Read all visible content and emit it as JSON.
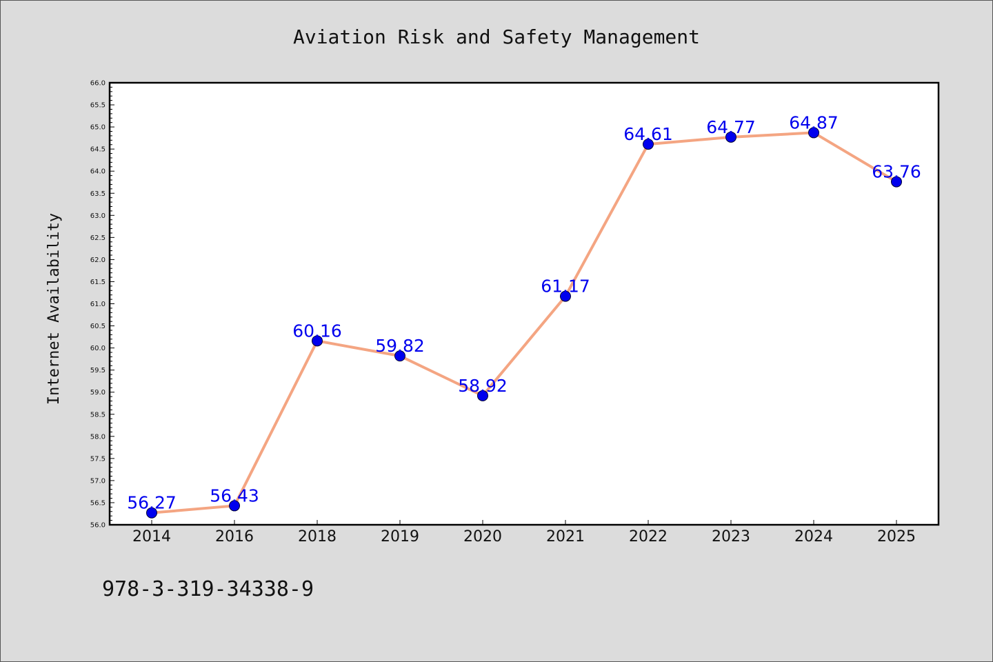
{
  "chart_data": {
    "type": "line",
    "title": "Aviation Risk and Safety Management",
    "xlabel": "",
    "ylabel": "Internet Availability",
    "categories": [
      "2014",
      "2016",
      "2018",
      "2019",
      "2020",
      "2021",
      "2022",
      "2023",
      "2024",
      "2025"
    ],
    "values": [
      56.27,
      56.43,
      60.16,
      59.82,
      58.92,
      61.17,
      64.61,
      64.77,
      64.87,
      63.76
    ],
    "data_labels": [
      "56.27",
      "56.43",
      "60.16",
      "59.82",
      "58.92",
      "61.17",
      "64.61",
      "64.77",
      "64.87",
      "63.76"
    ],
    "ylim": [
      56.0,
      66.0
    ],
    "ytick_step": 0.5,
    "grid": false,
    "legend": "none",
    "line_color": "#f4a582",
    "marker_color": "#0000ee",
    "label_color": "#0000ee"
  },
  "footer": {
    "isbn": "978-3-319-34338-9"
  }
}
